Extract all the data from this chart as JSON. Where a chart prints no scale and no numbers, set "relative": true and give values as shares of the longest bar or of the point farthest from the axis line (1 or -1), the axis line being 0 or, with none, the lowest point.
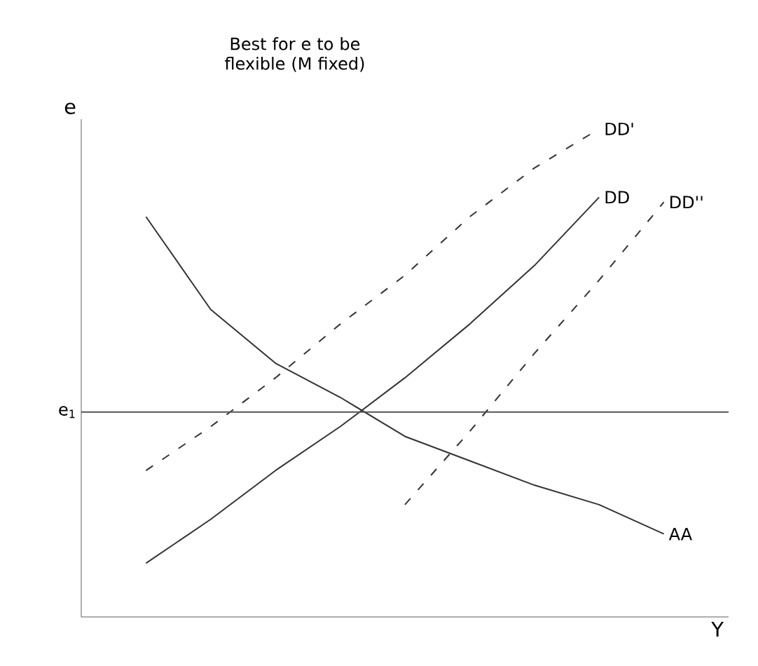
{
  "chart_data": {
    "type": "line",
    "relative": true,
    "xlabel": "Y",
    "ylabel": "e",
    "annotations": [
      "Best for e to be flexible (M fixed)"
    ],
    "categories": [
      null,
      null,
      null,
      null,
      null,
      null,
      null,
      null,
      null,
      null,
      null
    ],
    "series": [
      {
        "name": "AA",
        "color": "#333333",
        "line_style": "solid",
        "values": [
          null,
          0.82,
          0.63,
          0.52,
          0.45,
          0.37,
          0.32,
          0.27,
          0.23,
          0.17,
          null
        ]
      },
      {
        "name": "DD",
        "color": "#333333",
        "line_style": "solid",
        "values": [
          null,
          0.11,
          0.2,
          0.3,
          0.39,
          0.49,
          0.6,
          0.72,
          0.86,
          null,
          null
        ]
      },
      {
        "name": "DD'",
        "color": "#333333",
        "line_style": "dashed",
        "values": [
          null,
          0.3,
          0.39,
          0.49,
          0.6,
          0.7,
          0.82,
          0.92,
          1.0,
          null,
          null
        ]
      },
      {
        "name": "DD''",
        "color": "#333333",
        "line_style": "dashed",
        "values": [
          null,
          null,
          null,
          null,
          null,
          0.23,
          0.38,
          0.54,
          0.69,
          0.85,
          null
        ]
      }
    ],
    "ref_lines": [
      {
        "axis": "y",
        "value": 0.42,
        "label": "e$_{1}$",
        "color": "#555555"
      }
    ]
  }
}
